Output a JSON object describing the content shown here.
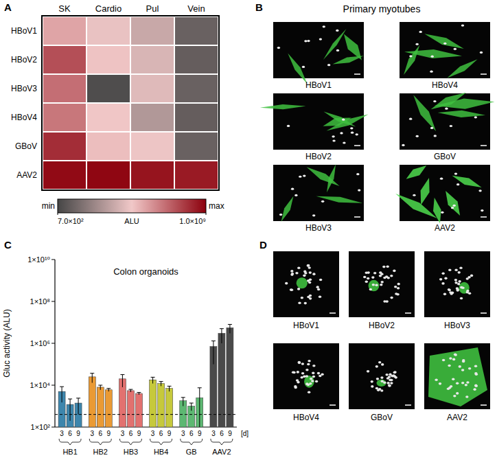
{
  "chart_data": [
    {
      "type": "heatmap",
      "panel": "A",
      "columns": [
        "SK",
        "Cardio",
        "Pul",
        "Vein"
      ],
      "rows": [
        "HBoV1",
        "HBoV2",
        "HBoV3",
        "HBoV4",
        "GBoV",
        "AAV2"
      ],
      "cells": [
        [
          3000000,
          600000,
          150000,
          3000
        ],
        [
          60000000,
          1000000,
          300000,
          2500
        ],
        [
          20000000,
          1000,
          400000,
          3000
        ],
        [
          15000000,
          900000,
          60000,
          2500
        ],
        [
          200000000,
          1200000,
          700000,
          3000
        ],
        [
          700000000,
          800000000,
          500000000,
          400000000
        ]
      ],
      "log": true,
      "colorbar": {
        "range": [
          700,
          1000000000
        ],
        "ticks": [
          {
            "value": 700,
            "label": "7.0×10²"
          },
          {
            "value": 1000000000,
            "label": "1.0×10⁹"
          }
        ],
        "label": "ALU",
        "min_label": "min",
        "max_label": "max"
      }
    },
    {
      "type": "bar",
      "panel": "C",
      "title": "Colon organoids",
      "y_label": "Gluc activity (ALU)",
      "log": "y",
      "ylim": [
        100,
        10000000000
      ],
      "yticks": [
        {
          "value": 100,
          "label": "1×10²"
        },
        {
          "value": 10000,
          "label": "1×10⁴"
        },
        {
          "value": 1000000,
          "label": "1×10⁶"
        },
        {
          "value": 100000000,
          "label": "1×10⁸"
        },
        {
          "value": 10000000000,
          "label": "1×10¹⁰"
        }
      ],
      "days": [
        3,
        6,
        9
      ],
      "day_unit": "[d]",
      "background": 400,
      "groups": [
        {
          "name": "HB1",
          "color": "#3d86ad",
          "values": [
            5000,
            1200,
            1400
          ],
          "errors": [
            3500,
            1000,
            1000
          ]
        },
        {
          "name": "HB2",
          "color": "#ea9a34",
          "values": [
            25000,
            8000,
            6000
          ],
          "errors": [
            12000,
            2000,
            1000
          ]
        },
        {
          "name": "HB3",
          "color": "#e2716f",
          "values": [
            20000,
            5500,
            4000
          ],
          "errors": [
            12000,
            800,
            500
          ]
        },
        {
          "name": "HB4",
          "color": "#c6c93c",
          "values": [
            18000,
            12000,
            7000
          ],
          "errors": [
            6000,
            3000,
            2000
          ]
        },
        {
          "name": "GB",
          "color": "#5db872",
          "values": [
            1800,
            1000,
            2500
          ],
          "errors": [
            800,
            400,
            5000
          ]
        },
        {
          "name": "AAV2",
          "color": "#4a4a4a",
          "values": [
            700000,
            3000000,
            5500000
          ],
          "errors": [
            600000,
            2000000,
            2500000
          ]
        }
      ]
    }
  ],
  "images": [
    {
      "panel": "B",
      "title": "Primary myotubes",
      "labels": [
        "HBoV1",
        "HBoV4",
        "HBoV2",
        "GBoV",
        "HBoV3",
        "AAV2"
      ]
    },
    {
      "panel": "D",
      "labels": [
        "HBoV1",
        "HBoV2",
        "HBoV3",
        "HBoV4",
        "GBoV",
        "AAV2"
      ]
    }
  ]
}
